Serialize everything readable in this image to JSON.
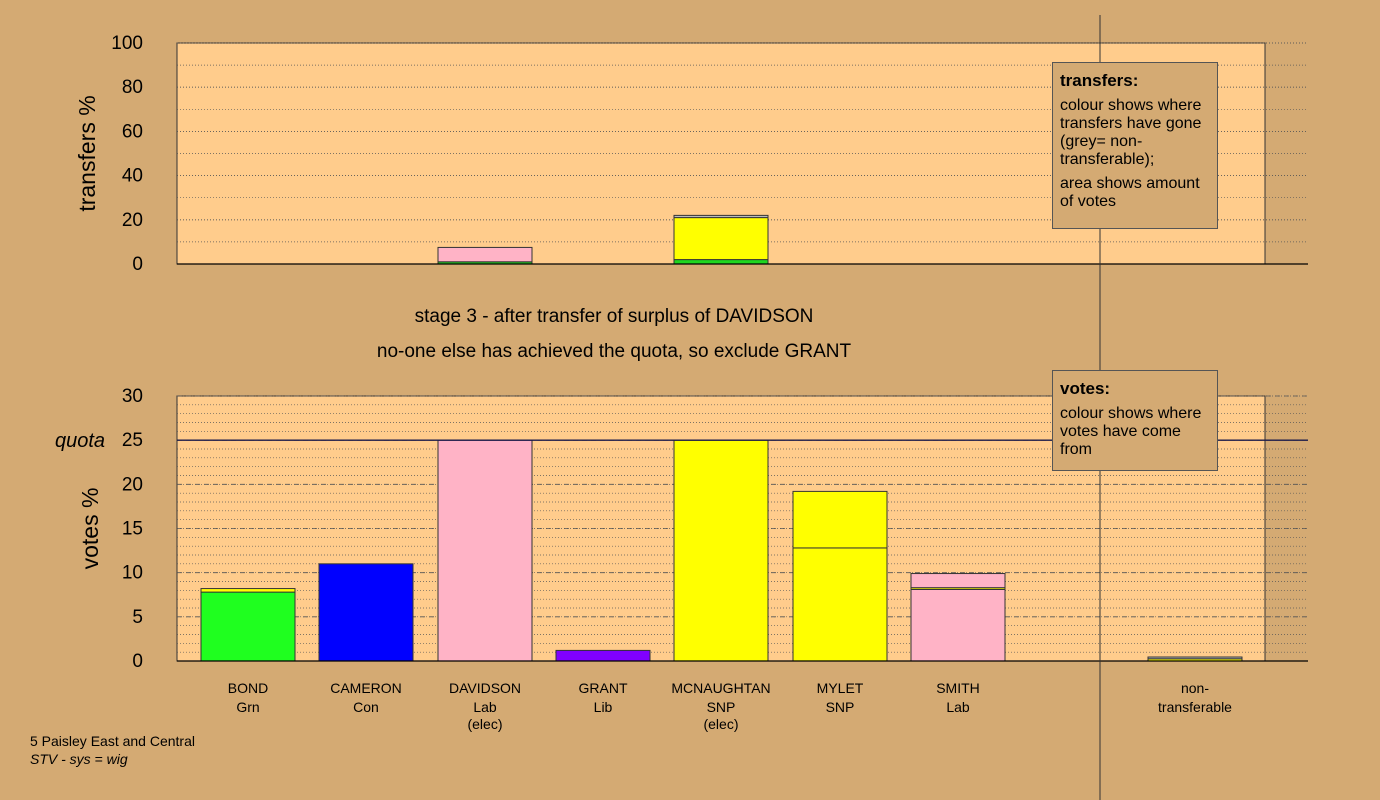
{
  "chart_data": [
    {
      "type": "bar",
      "name": "transfers",
      "ylabel": "transfers %",
      "ylim": [
        0,
        100
      ],
      "yticks": [
        0,
        20,
        40,
        60,
        80,
        100
      ],
      "bars": [
        {
          "slot": 2,
          "segments": [
            {
              "value": 1,
              "color": "#1fd61f"
            },
            {
              "value": 6.5,
              "color": "#ffb3c6"
            }
          ]
        },
        {
          "slot": 4,
          "segments": [
            {
              "value": 2,
              "color": "#1fd61f"
            },
            {
              "value": 19,
              "color": "#ffff00"
            },
            {
              "value": 1,
              "color": "#bbbbbb"
            }
          ]
        }
      ]
    },
    {
      "type": "bar",
      "name": "votes",
      "ylabel": "votes %",
      "ylim": [
        0,
        30
      ],
      "yticks": [
        0,
        5,
        10,
        15,
        20,
        25,
        30
      ],
      "quota": 25,
      "quota_label": "quota",
      "bars": [
        {
          "slot": 0,
          "segments": [
            {
              "value": 7.8,
              "color": "#1fff1f"
            },
            {
              "value": 0.4,
              "color": "#ffff00"
            }
          ]
        },
        {
          "slot": 1,
          "segments": [
            {
              "value": 11,
              "color": "#0000ff"
            }
          ]
        },
        {
          "slot": 2,
          "segments": [
            {
              "value": 25,
              "color": "#ffb3c6"
            }
          ]
        },
        {
          "slot": 3,
          "segments": [
            {
              "value": 1.2,
              "color": "#8000ff"
            }
          ]
        },
        {
          "slot": 4,
          "segments": [
            {
              "value": 25,
              "color": "#ffff00"
            }
          ]
        },
        {
          "slot": 5,
          "segments": [
            {
              "value": 12.8,
              "color": "#ffff00"
            },
            {
              "value": 6.4,
              "color": "#ffff00"
            }
          ]
        },
        {
          "slot": 6,
          "segments": [
            {
              "value": 8.1,
              "color": "#ffb3c6"
            },
            {
              "value": 0.2,
              "color": "#ffff00"
            },
            {
              "value": 1.6,
              "color": "#ffb3c6"
            }
          ]
        },
        {
          "slot": 8,
          "segments": [
            {
              "value": 0.25,
              "color": "#ffff00"
            },
            {
              "value": 0.2,
              "color": "#bbbbbb"
            }
          ]
        }
      ]
    }
  ],
  "candidates": [
    {
      "name": "BOND",
      "party": "Grn",
      "note": ""
    },
    {
      "name": "CAMERON",
      "party": "Con",
      "note": ""
    },
    {
      "name": "DAVIDSON",
      "party": "Lab",
      "note": "(elec)"
    },
    {
      "name": "GRANT",
      "party": "Lib",
      "note": ""
    },
    {
      "name": "MCNAUGHTAN",
      "party": "SNP",
      "note": "(elec)"
    },
    {
      "name": "MYLET",
      "party": "SNP",
      "note": ""
    },
    {
      "name": "SMITH",
      "party": "Lab",
      "note": ""
    },
    {
      "name": "",
      "party": "",
      "note": ""
    },
    {
      "name": "non-",
      "party": "transferable",
      "note": ""
    }
  ],
  "stage": {
    "line1": "stage 3 - after transfer of surplus of DAVIDSON",
    "line2": "no-one else has achieved the quota, so exclude GRANT"
  },
  "legend_transfers": {
    "title": "transfers:",
    "p1": "colour shows where transfers have gone (grey= non-transferable);",
    "p2": "area shows amount of votes"
  },
  "legend_votes": {
    "title": "votes:",
    "p1": "colour shows where votes have come from"
  },
  "footer": {
    "line1": "5 Paisley East and Central",
    "line2": "STV - sys = wig"
  },
  "colors": {
    "background": "#d4aa73",
    "plot_background": "#ffcc8c"
  }
}
